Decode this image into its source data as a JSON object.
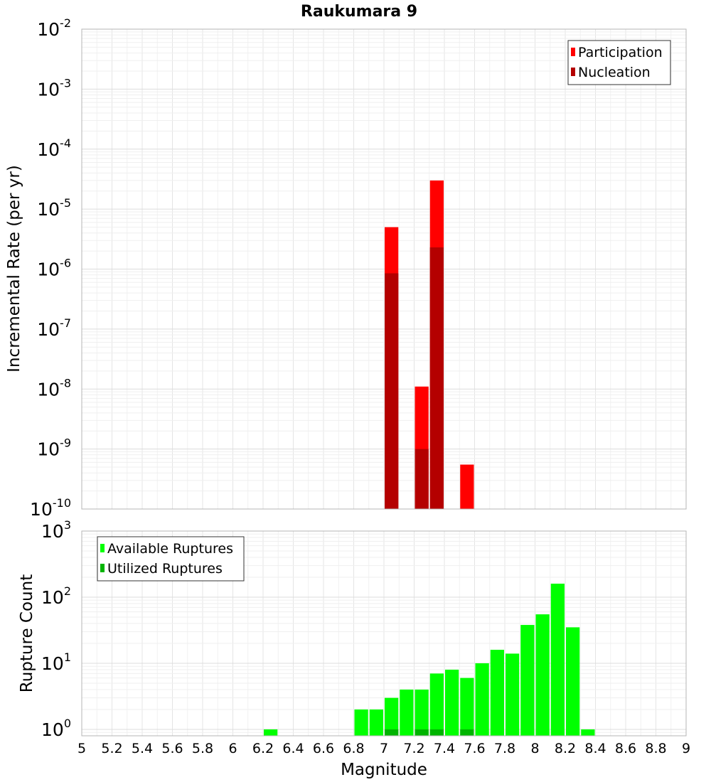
{
  "chart_data": [
    {
      "type": "bar",
      "title": "Raukumara 9",
      "xlabel": "",
      "ylabel": "Incremental Rate (per yr)",
      "yscale": "log",
      "xlim": [
        5,
        9
      ],
      "ylim": [
        1e-10,
        0.01
      ],
      "bar_width": 0.1,
      "y_ticks": [
        {
          "base": "10",
          "exp": "-10",
          "value": 1e-10
        },
        {
          "base": "10",
          "exp": "-9",
          "value": 1e-09
        },
        {
          "base": "10",
          "exp": "-8",
          "value": 1e-08
        },
        {
          "base": "10",
          "exp": "-7",
          "value": 1e-07
        },
        {
          "base": "10",
          "exp": "-6",
          "value": 1e-06
        },
        {
          "base": "10",
          "exp": "-5",
          "value": 1e-05
        },
        {
          "base": "10",
          "exp": "-4",
          "value": 0.0001
        },
        {
          "base": "10",
          "exp": "-3",
          "value": 0.001
        },
        {
          "base": "10",
          "exp": "-2",
          "value": 0.01
        }
      ],
      "legend_position": "top-right",
      "grid": true,
      "series": [
        {
          "name": "Participation",
          "color": "#ff0000",
          "points": [
            {
              "x": 7.05,
              "y": 5e-06
            },
            {
              "x": 7.25,
              "y": 1.1e-08
            },
            {
              "x": 7.35,
              "y": 3e-05
            },
            {
              "x": 7.55,
              "y": 5.5e-10
            }
          ]
        },
        {
          "name": "Nucleation",
          "color": "#b40000",
          "points": [
            {
              "x": 7.05,
              "y": 8.5e-07
            },
            {
              "x": 7.25,
              "y": 1e-09
            },
            {
              "x": 7.35,
              "y": 2.3e-06
            }
          ]
        }
      ]
    },
    {
      "type": "bar",
      "title": "",
      "xlabel": "Magnitude",
      "ylabel": "Rupture Count",
      "yscale": "log",
      "xlim": [
        5,
        9
      ],
      "ylim": [
        0.8,
        1000
      ],
      "bar_width": 0.1,
      "x_ticks": [
        "5",
        "5.2",
        "5.4",
        "5.6",
        "5.8",
        "6",
        "6.2",
        "6.4",
        "6.6",
        "6.8",
        "7",
        "7.2",
        "7.4",
        "7.6",
        "7.8",
        "8",
        "8.2",
        "8.4",
        "8.6",
        "8.8",
        "9"
      ],
      "y_ticks": [
        {
          "base": "10",
          "exp": "0",
          "value": 1
        },
        {
          "base": "10",
          "exp": "1",
          "value": 10
        },
        {
          "base": "10",
          "exp": "2",
          "value": 100
        },
        {
          "base": "10",
          "exp": "3",
          "value": 1000
        }
      ],
      "legend_position": "top-left",
      "grid": true,
      "series": [
        {
          "name": "Available Ruptures",
          "color": "#00ff00",
          "points": [
            {
              "x": 6.25,
              "y": 1
            },
            {
              "x": 6.85,
              "y": 2
            },
            {
              "x": 6.95,
              "y": 2
            },
            {
              "x": 7.05,
              "y": 3
            },
            {
              "x": 7.15,
              "y": 4
            },
            {
              "x": 7.25,
              "y": 4
            },
            {
              "x": 7.35,
              "y": 7
            },
            {
              "x": 7.45,
              "y": 8
            },
            {
              "x": 7.55,
              "y": 6
            },
            {
              "x": 7.65,
              "y": 10
            },
            {
              "x": 7.75,
              "y": 16
            },
            {
              "x": 7.85,
              "y": 14
            },
            {
              "x": 7.95,
              "y": 38
            },
            {
              "x": 8.05,
              "y": 55
            },
            {
              "x": 8.15,
              "y": 160
            },
            {
              "x": 8.25,
              "y": 35
            },
            {
              "x": 8.35,
              "y": 1
            }
          ]
        },
        {
          "name": "Utilized Ruptures",
          "color": "#00b400",
          "points": [
            {
              "x": 7.05,
              "y": 1
            },
            {
              "x": 7.25,
              "y": 1
            },
            {
              "x": 7.35,
              "y": 1
            },
            {
              "x": 7.55,
              "y": 1
            }
          ]
        }
      ]
    }
  ]
}
